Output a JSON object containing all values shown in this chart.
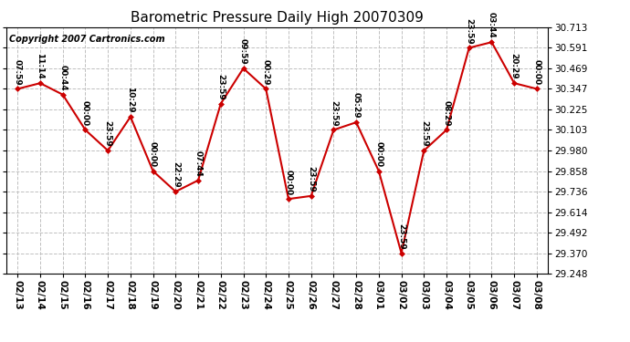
{
  "title": "Barometric Pressure Daily High 20070309",
  "copyright": "Copyright 2007 Cartronics.com",
  "dates": [
    "02/13",
    "02/14",
    "02/15",
    "02/16",
    "02/17",
    "02/18",
    "02/19",
    "02/20",
    "02/21",
    "02/22",
    "02/23",
    "02/24",
    "02/25",
    "02/26",
    "02/27",
    "02/28",
    "03/01",
    "03/02",
    "03/03",
    "03/04",
    "03/05",
    "03/06",
    "03/07",
    "03/08"
  ],
  "values": [
    30.347,
    30.381,
    30.313,
    30.103,
    29.98,
    30.181,
    29.858,
    29.736,
    29.803,
    30.259,
    30.469,
    30.347,
    29.692,
    29.71,
    30.103,
    30.148,
    29.858,
    29.37,
    29.98,
    30.103,
    30.591,
    30.625,
    30.381,
    30.347
  ],
  "time_labels": [
    "07:59",
    "11:14",
    "00:44",
    "00:00",
    "23:59",
    "10:29",
    "00:00",
    "22:29",
    "07:44",
    "23:59",
    "09:59",
    "00:29",
    "00:00",
    "23:59",
    "23:59",
    "05:29",
    "00:00",
    "23:59",
    "23:59",
    "08:29",
    "23:59",
    "03:44",
    "20:29",
    "00:00"
  ],
  "ylim_min": 29.248,
  "ylim_max": 30.713,
  "yticks": [
    29.248,
    29.37,
    29.492,
    29.614,
    29.736,
    29.858,
    29.98,
    30.103,
    30.225,
    30.347,
    30.469,
    30.591,
    30.713
  ],
  "line_color": "#cc0000",
  "marker_color": "#cc0000",
  "bg_color": "#ffffff",
  "grid_color": "#c0c0c0",
  "title_fontsize": 11,
  "tick_fontsize": 7.5,
  "copyright_fontsize": 7,
  "annotation_fontsize": 6.5
}
